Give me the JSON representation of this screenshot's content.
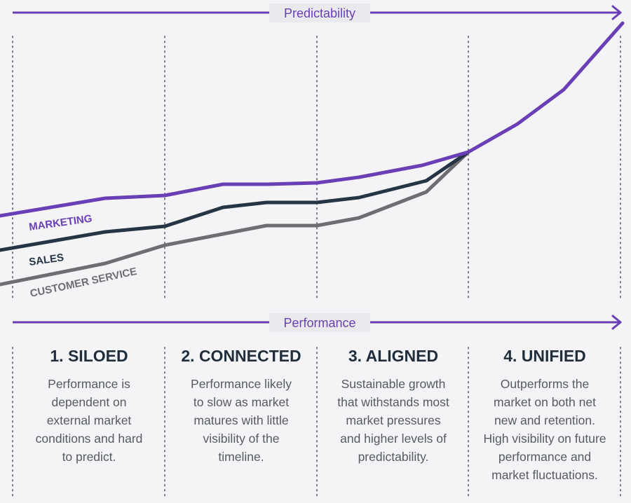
{
  "axes": {
    "top_label": "Predictability",
    "bottom_label": "Performance"
  },
  "colors": {
    "accent": "#6a3fb5",
    "marketing": "#6a3fb5",
    "sales": "#263545",
    "customer_service": "#6e6e72",
    "stage_title": "#1f2d3d",
    "stage_text": "#555a63",
    "divider": "#7a7a80",
    "background": "#f4f4f6"
  },
  "chart_data": {
    "type": "line",
    "series": [
      {
        "name": "MARKETING",
        "color": "#6a3fb5",
        "points": [
          [
            0,
            308
          ],
          [
            150,
            283
          ],
          [
            235,
            279
          ],
          [
            318,
            263
          ],
          [
            380,
            263
          ],
          [
            452,
            261
          ],
          [
            512,
            253
          ],
          [
            602,
            236
          ],
          [
            668,
            217
          ],
          [
            738,
            177
          ],
          [
            804,
            128
          ],
          [
            888,
            33
          ]
        ]
      },
      {
        "name": "SALES",
        "color": "#263545",
        "points": [
          [
            0,
            357
          ],
          [
            150,
            331
          ],
          [
            235,
            323
          ],
          [
            318,
            296
          ],
          [
            380,
            289
          ],
          [
            452,
            289
          ],
          [
            512,
            282
          ],
          [
            608,
            258
          ],
          [
            668,
            217
          ]
        ]
      },
      {
        "name": "CUSTOMER SERVICE",
        "color": "#6e6e72",
        "points": [
          [
            0,
            406
          ],
          [
            150,
            376
          ],
          [
            235,
            350
          ],
          [
            318,
            334
          ],
          [
            380,
            322
          ],
          [
            452,
            322
          ],
          [
            512,
            311
          ],
          [
            608,
            274
          ],
          [
            668,
            217
          ]
        ]
      }
    ]
  },
  "stages": [
    {
      "title": "1. SILOED",
      "text": "Performance is\ndependent on\nexternal market\nconditions and hard\nto predict."
    },
    {
      "title": "2. CONNECTED",
      "text": "Performance likely\nto slow as market\nmatures with little\nvisibility of the\ntimeline."
    },
    {
      "title": "3. ALIGNED",
      "text": "Sustainable growth\nthat withstands most\nmarket pressures\nand higher levels of\npredictability."
    },
    {
      "title": "4. UNIFIED",
      "text": "Outperforms the\nmarket on both net\nnew and retention.\nHigh visibility on future\nperformance and\nmarket fluctuations."
    }
  ]
}
